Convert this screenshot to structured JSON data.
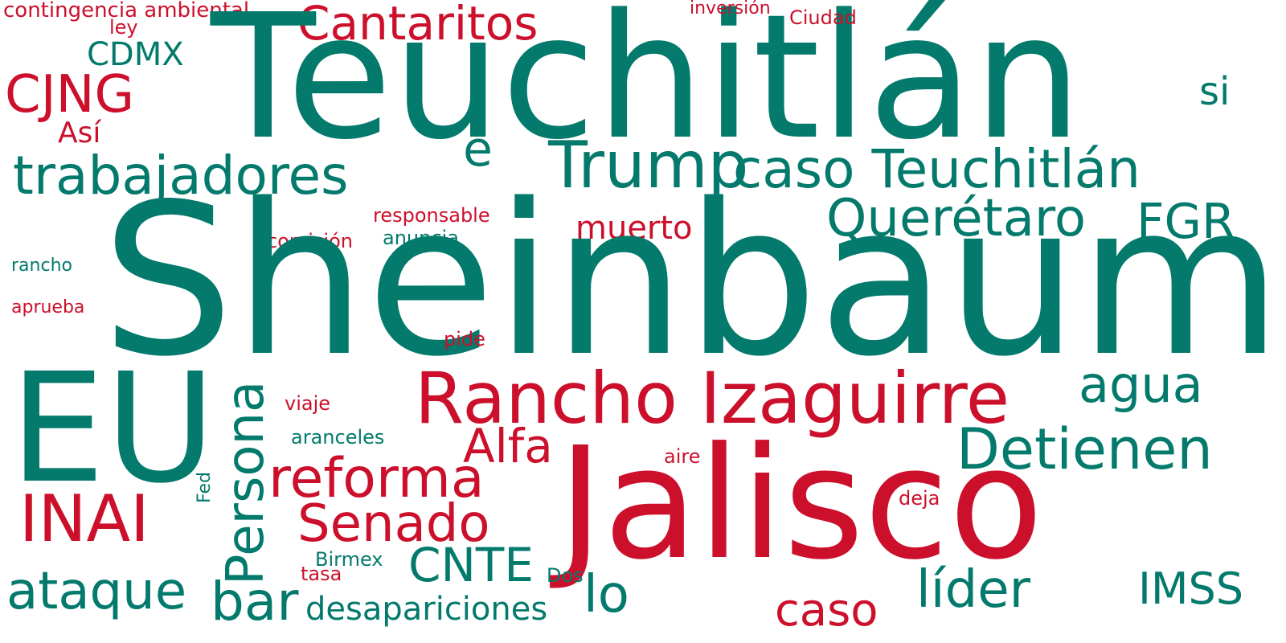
{
  "colors": {
    "green": "#037a6c",
    "red": "#cc102c",
    "background": "#ffffff"
  },
  "words": {
    "contingencia_ambiental": "contingencia ambiental",
    "ley": "ley",
    "cantaritos": "Cantaritos",
    "teuchitlan": "Teuchitlán",
    "inversion": "inversión",
    "ciudad": "Ciudad",
    "cdmx": "CDMX",
    "cjng": "CJNG",
    "si": "si",
    "asi": "Así",
    "e": "e",
    "trump": "Trump",
    "caso_teuchitlan": "caso Teuchitlán",
    "trabajadores": "trabajadores",
    "responsable": "responsable",
    "queretaro": "Querétaro",
    "fgr": "FGR",
    "muerto": "muerto",
    "comision": "comisión",
    "anuncia": "anuncia",
    "rancho": "rancho",
    "sheinbaum": "Sheinbaum",
    "aprueba": "aprueba",
    "pide": "pide",
    "eu": "EU",
    "rancho_izaguirre": "Rancho Izaguirre",
    "agua": "agua",
    "persona": "Persona",
    "viaje": "viaje",
    "alfa": "Alfa",
    "detienen": "Detienen",
    "aranceles": "aranceles",
    "aire": "aire",
    "reforma": "reforma",
    "fed": "Fed",
    "jalisco": "Jalisco",
    "inai": "INAI",
    "deja": "deja",
    "senado": "Senado",
    "birmex": "Birmex",
    "cnte": "CNTE",
    "tasa": "tasa",
    "dos": "Dos",
    "ataque": "ataque",
    "lo": "lo",
    "lider": "líder",
    "imss": "IMSS",
    "bar": "bar",
    "desapariciones": "desapariciones",
    "caso": "caso"
  }
}
